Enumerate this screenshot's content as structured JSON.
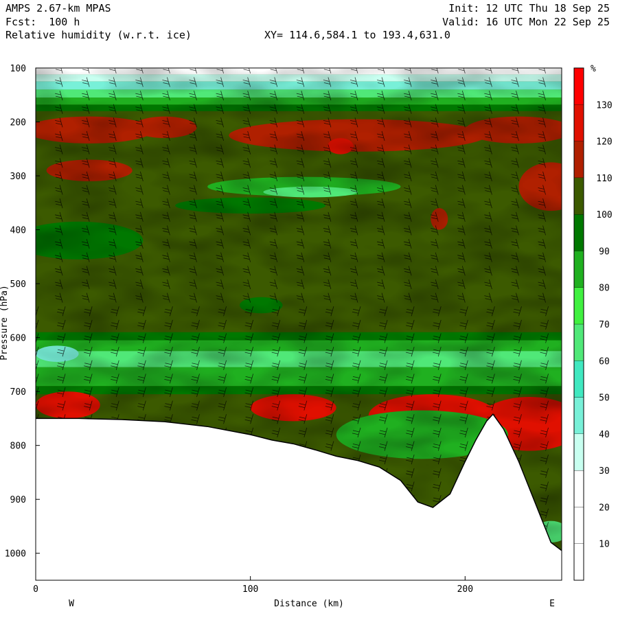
{
  "header": {
    "model": "AMPS 2.67-km MPAS",
    "forecast": "Fcst:  100 h",
    "field": "Relative humidity (w.r.t. ice)",
    "init": "Init: 12 UTC Thu 18 Sep 25",
    "valid": "Valid: 16 UTC Mon 22 Sep 25",
    "xy": "XY= 114.6,584.1 to 193.4,631.0"
  },
  "chart_data": {
    "type": "heatmap",
    "xlabel": "Distance (km)",
    "ylabel": "Pressure (hPa)",
    "xlim": [
      0,
      245
    ],
    "ylim": [
      1050,
      100
    ],
    "x_ticks": [
      "0",
      "100",
      "200"
    ],
    "y_ticks": [
      "100",
      "200",
      "300",
      "400",
      "500",
      "600",
      "700",
      "800",
      "900",
      "1000"
    ],
    "left_end_label": "W",
    "right_end_label": "E",
    "colorbar": {
      "unit": "%",
      "levels": [
        "10",
        "20",
        "30",
        "40",
        "50",
        "60",
        "70",
        "80",
        "90",
        "100",
        "110",
        "120",
        "130"
      ],
      "colors": [
        "#ffffff",
        "#ffffff",
        "#ffffff",
        "#c8fff0",
        "#78f0d8",
        "#40e8c0",
        "#50e878",
        "#40f040",
        "#20b020",
        "#007800",
        "#3c5a00",
        "#b02000",
        "#e01000",
        "#ff0000"
      ]
    },
    "terrain_km": [
      0,
      20,
      40,
      60,
      80,
      100,
      110,
      120,
      130,
      140,
      150,
      160,
      170,
      178,
      185,
      193,
      200,
      205,
      210,
      213,
      218,
      225,
      232,
      240,
      245
    ],
    "terrain_hpa": [
      750,
      750,
      752,
      756,
      765,
      780,
      790,
      797,
      808,
      820,
      828,
      840,
      865,
      905,
      915,
      890,
      830,
      790,
      755,
      742,
      770,
      830,
      900,
      980,
      995
    ]
  }
}
